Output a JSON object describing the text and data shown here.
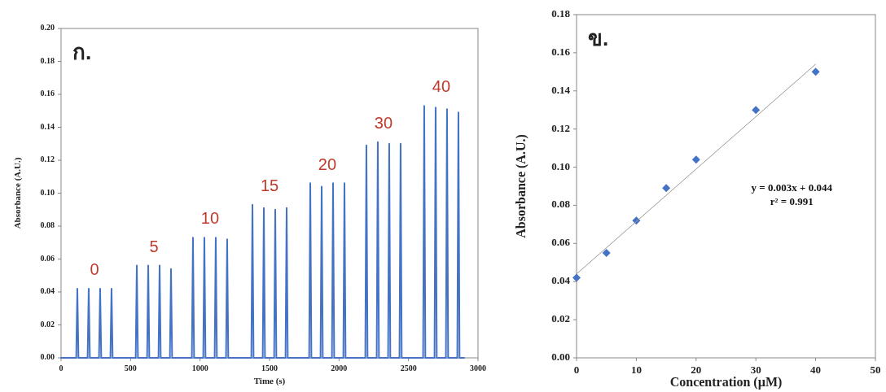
{
  "chart_data": [
    {
      "type": "line",
      "xlabel": "Time (s)",
      "ylabel": "Absorbance (A.U.)",
      "xlim": [
        0,
        3000
      ],
      "xticks": [
        0,
        500,
        1000,
        1500,
        2000,
        2500,
        3000
      ],
      "ylim": [
        0,
        0.2
      ],
      "yticks": [
        {
          "value": 0,
          "label": "0.00"
        },
        {
          "value": 0.02,
          "label": "0.02"
        },
        {
          "value": 0.04,
          "label": "0.04"
        },
        {
          "value": 0.06,
          "label": "0.06"
        },
        {
          "value": 0.08,
          "label": "0.08"
        },
        {
          "value": 0.1,
          "label": "0.10"
        },
        {
          "value": 0.12,
          "label": "0.12"
        },
        {
          "value": 0.14,
          "label": "0.14"
        },
        {
          "value": 0.16,
          "label": "0.16"
        },
        {
          "value": 0.18,
          "label": "0.18"
        },
        {
          "value": 0.2,
          "label": "0.20"
        }
      ],
      "series": [
        {
          "color": "#4472c4",
          "x": [
            0,
            109,
            117,
            125,
            191,
            199,
            207,
            273,
            281,
            289,
            355,
            363,
            371,
            537,
            545,
            553,
            619,
            627,
            635,
            701,
            709,
            717,
            783,
            791,
            799,
            941,
            949,
            957,
            1023,
            1031,
            1039,
            1105,
            1113,
            1121,
            1187,
            1195,
            1203,
            1369,
            1377,
            1385,
            1451,
            1459,
            1467,
            1533,
            1541,
            1549,
            1615,
            1623,
            1631,
            1785,
            1793,
            1801,
            1867,
            1875,
            1883,
            1949,
            1957,
            1965,
            2031,
            2039,
            2047,
            2189,
            2197,
            2205,
            2271,
            2279,
            2287,
            2353,
            2361,
            2369,
            2435,
            2443,
            2451,
            2605,
            2613,
            2621,
            2687,
            2695,
            2703,
            2769,
            2777,
            2785,
            2851,
            2859,
            2867,
            2900
          ],
          "values": [
            0,
            0,
            0.042,
            0,
            0,
            0.042,
            0,
            0,
            0.042,
            0,
            0,
            0.042,
            0,
            0,
            0.056,
            0,
            0,
            0.056,
            0,
            0,
            0.056,
            0,
            0,
            0.054,
            0,
            0,
            0.073,
            0,
            0,
            0.073,
            0,
            0,
            0.073,
            0,
            0,
            0.072,
            0,
            0,
            0.093,
            0,
            0,
            0.091,
            0,
            0,
            0.09,
            0,
            0,
            0.091,
            0,
            0,
            0.106,
            0,
            0,
            0.104,
            0,
            0,
            0.106,
            0,
            0,
            0.106,
            0,
            0,
            0.129,
            0,
            0,
            0.131,
            0,
            0,
            0.13,
            0,
            0,
            0.13,
            0,
            0,
            0.153,
            0,
            0,
            0.152,
            0,
            0,
            0.151,
            0,
            0,
            0.149,
            0,
            0
          ]
        }
      ],
      "annotations": [
        "ก.",
        "0",
        "5",
        "10",
        "15",
        "20",
        "30",
        "40"
      ]
    },
    {
      "type": "scatter",
      "xlabel": "Concentration (µM)",
      "ylabel": "Absorbance (A.U.)",
      "xlim": [
        0,
        50
      ],
      "xticks": [
        0,
        10,
        20,
        30,
        40,
        50
      ],
      "ylim": [
        0,
        0.18
      ],
      "yticks": [
        {
          "value": 0,
          "label": "0.00"
        },
        {
          "value": 0.02,
          "label": "0.02"
        },
        {
          "value": 0.04,
          "label": "0.04"
        },
        {
          "value": 0.06,
          "label": "0.06"
        },
        {
          "value": 0.08,
          "label": "0.08"
        },
        {
          "value": 0.1,
          "label": "0.10"
        },
        {
          "value": 0.12,
          "label": "0.12"
        },
        {
          "value": 0.14,
          "label": "0.14"
        },
        {
          "value": 0.16,
          "label": "0.16"
        },
        {
          "value": 0.18,
          "label": "0.18"
        }
      ],
      "series": [
        {
          "marker": "diamond",
          "color": "#4472c4",
          "x": [
            0,
            5,
            10,
            15,
            20,
            30,
            40
          ],
          "values": [
            0.042,
            0.055,
            0.072,
            0.089,
            0.104,
            0.13,
            0.15
          ]
        },
        {
          "type": "line",
          "color": "#999999",
          "x": [
            0,
            40
          ],
          "values": [
            0.044,
            0.154
          ]
        }
      ],
      "annotations": [
        "ข.",
        "y = 0.003x + 0.044",
        "r² = 0.991"
      ]
    }
  ]
}
